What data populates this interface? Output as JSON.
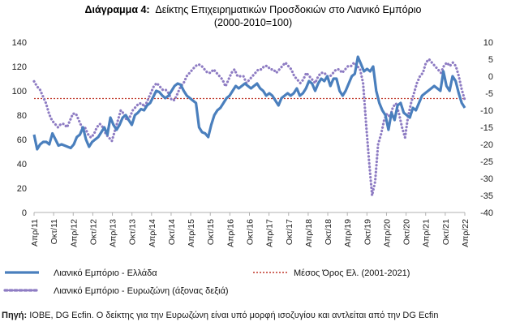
{
  "chart_data": {
    "type": "line",
    "title_bold": "Διάγραμμα 4:",
    "title": "Δείκτης Επιχειρηματικών Προσδοκιών στο Λιανικό Εμπόριο",
    "subtitle": "(2000-2010=100)",
    "x_tick_labels": [
      "Απρ/11",
      "Οκτ/11",
      "Απρ/12",
      "Οκτ/12",
      "Απρ/13",
      "Οκτ/13",
      "Απρ/14",
      "Οκτ/14",
      "Απρ/15",
      "Οκτ/15",
      "Απρ/16",
      "Οκτ/16",
      "Απρ/17",
      "Οκτ/17",
      "Απρ/18",
      "Οκτ/18",
      "Απρ/19",
      "Οκτ/19",
      "Απρ/20",
      "Οκτ/20",
      "Απρ/21",
      "Οκτ/21",
      "Απρ/22"
    ],
    "ylim_left": [
      0,
      140
    ],
    "yticks_left": [
      "0",
      "20",
      "40",
      "60",
      "80",
      "100",
      "120",
      "140"
    ],
    "ylim_right": [
      -40,
      10
    ],
    "yticks_right": [
      "-40",
      "-35",
      "-30",
      "-25",
      "-20",
      "-15",
      "-10",
      "-5",
      "0",
      "5",
      "10"
    ],
    "grid": false,
    "legend_position": "bottom",
    "series": [
      {
        "name": "Λιανικό Εμπόριο  - Ελλάδα",
        "axis": "left",
        "style": "solid",
        "color": "#4a7fbd",
        "values": [
          64,
          52,
          56,
          58,
          58,
          56,
          65,
          60,
          55,
          56,
          55,
          54,
          53,
          56,
          62,
          64,
          70,
          60,
          54,
          58,
          60,
          62,
          66,
          70,
          64,
          78,
          72,
          68,
          72,
          78,
          80,
          76,
          72,
          80,
          82,
          85,
          84,
          88,
          90,
          95,
          100,
          99,
          96,
          94,
          96,
          100,
          104,
          106,
          105,
          100,
          96,
          94,
          92,
          90,
          70,
          66,
          65,
          62,
          72,
          80,
          84,
          86,
          90,
          94,
          96,
          100,
          104,
          102,
          104,
          106,
          104,
          102,
          104,
          106,
          102,
          100,
          96,
          98,
          96,
          92,
          88,
          94,
          96,
          98,
          96,
          98,
          102,
          96,
          98,
          102,
          108,
          106,
          100,
          106,
          110,
          108,
          112,
          104,
          110,
          110,
          100,
          96,
          100,
          106,
          112,
          114,
          128,
          122,
          116,
          118,
          116,
          120,
          100,
          90,
          84,
          80,
          68,
          82,
          76,
          88,
          90,
          82,
          80,
          78,
          86,
          84,
          90,
          96,
          98,
          100,
          102,
          104,
          102,
          100,
          116,
          104,
          100,
          112,
          108,
          98,
          90,
          86
        ]
      },
      {
        "name": "Μέσος Όρος Ελ.  (2001-2021)",
        "axis": "left",
        "style": "dotted",
        "color": "#c0392b",
        "values": [
          93.7
        ]
      },
      {
        "name": "Λιανικό Εμπόριο - Ευρωζώνη (άξονας δεξιά)",
        "axis": "right",
        "style": "dotted",
        "color": "#8e7cc3",
        "values": [
          -1.5,
          -3,
          -4,
          -6,
          -8,
          -11,
          -13,
          -14,
          -15,
          -14,
          -14,
          -15,
          -13,
          -11,
          -11,
          -13,
          -15,
          -15,
          -17,
          -18,
          -17,
          -15,
          -14,
          -15,
          -17,
          -18,
          -19,
          -16,
          -13,
          -10,
          -11,
          -13,
          -12,
          -10,
          -9,
          -8,
          -8,
          -9,
          -7,
          -5,
          -3,
          -2,
          -3,
          -4,
          -4,
          -5,
          -7,
          -7,
          -5,
          -3,
          -2,
          0,
          1,
          2,
          3,
          3.5,
          3,
          2,
          1,
          1,
          2,
          1,
          0,
          -1,
          -3,
          -1,
          1,
          2,
          0,
          0,
          0,
          -2,
          -1,
          0,
          1,
          2,
          2,
          3,
          3,
          2,
          2,
          1,
          2,
          3,
          4,
          3,
          2,
          0,
          -1,
          -2,
          -1,
          1,
          0,
          -1,
          -2,
          0,
          1,
          1,
          0,
          0,
          1,
          2,
          2,
          1,
          2,
          3,
          3,
          4,
          3,
          2,
          -2,
          -14,
          -25,
          -35,
          -31,
          -20,
          -17,
          -13,
          -11,
          -12,
          -9,
          -8,
          -11,
          -15,
          -18,
          -12,
          -8,
          -5,
          -2,
          0,
          1,
          4,
          5,
          4,
          3,
          2,
          1,
          3,
          4,
          3,
          4,
          3,
          0,
          -4,
          -7
        ]
      }
    ]
  },
  "source_label": "Πηγή:",
  "source_text": " ΙΟΒΕ, DG Ecfin. Ο δείκτης για την Ευρωζώνη είναι υπό μορφή ισοζυγίου και αντλείται από την DG Ecfin"
}
